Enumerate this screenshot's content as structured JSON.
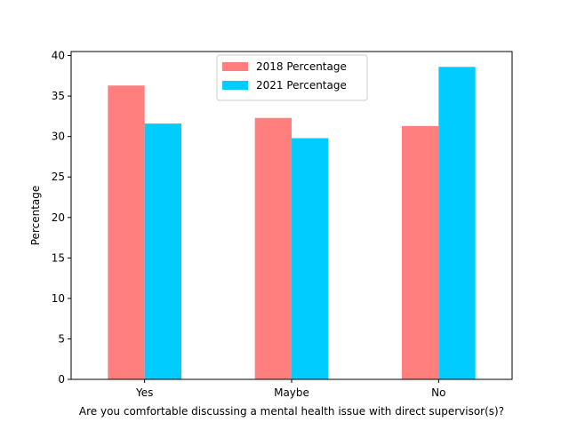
{
  "chart_data": {
    "type": "bar",
    "title": "",
    "categories": [
      "Yes",
      "Maybe",
      "No"
    ],
    "series": [
      {
        "name": "2018 Percentage",
        "values": [
          36.3,
          32.3,
          31.3
        ],
        "color": "#ff7f7f"
      },
      {
        "name": "2021 Percentage",
        "values": [
          31.6,
          29.8,
          38.6
        ],
        "color": "#00ccff"
      }
    ],
    "xlabel": "Are you comfortable discussing a mental health issue with direct supervisor(s)?",
    "ylabel": "Percentage",
    "ylim": [
      0,
      40.5
    ],
    "yticks": [
      0,
      5,
      10,
      15,
      20,
      25,
      30,
      35,
      40
    ],
    "grid": false,
    "legend_position": "upper center"
  }
}
